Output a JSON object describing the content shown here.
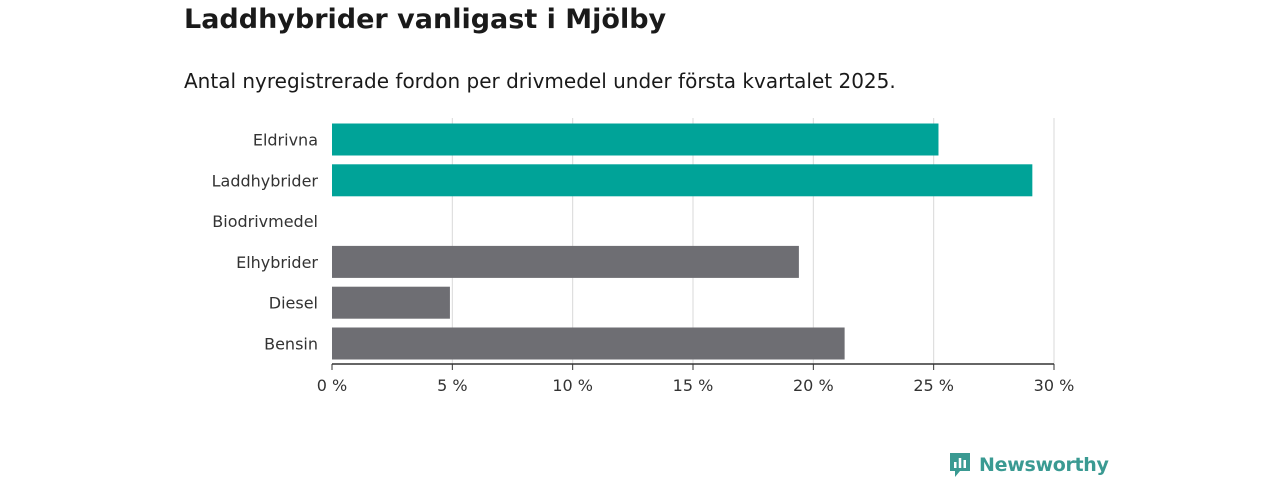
{
  "title": "Laddhybrider vanligast i Mjölby",
  "subtitle": "Antal nyregistrerade fordon per drivmedel under första kvartalet 2025.",
  "brand": {
    "name": "Newsworthy",
    "color": "#3a9a92"
  },
  "colors": {
    "highlight": "#00a398",
    "other": "#6e6e73",
    "grid": "#d9d9d9",
    "axis": "#333333"
  },
  "chart_data": {
    "type": "bar",
    "orientation": "horizontal",
    "categories": [
      "Eldrivna",
      "Laddhybrider",
      "Biodrivmedel",
      "Elhybrider",
      "Diesel",
      "Bensin"
    ],
    "values": [
      25.2,
      29.1,
      0,
      19.4,
      4.9,
      21.3
    ],
    "highlighted": [
      true,
      true,
      false,
      false,
      false,
      false
    ],
    "xlim": [
      0,
      30
    ],
    "xticks": [
      0,
      5,
      10,
      15,
      20,
      25,
      30
    ],
    "xtick_labels": [
      "0 %",
      "5 %",
      "10 %",
      "15 %",
      "20 %",
      "25 %",
      "30 %"
    ],
    "unit": "%",
    "grid": true
  }
}
